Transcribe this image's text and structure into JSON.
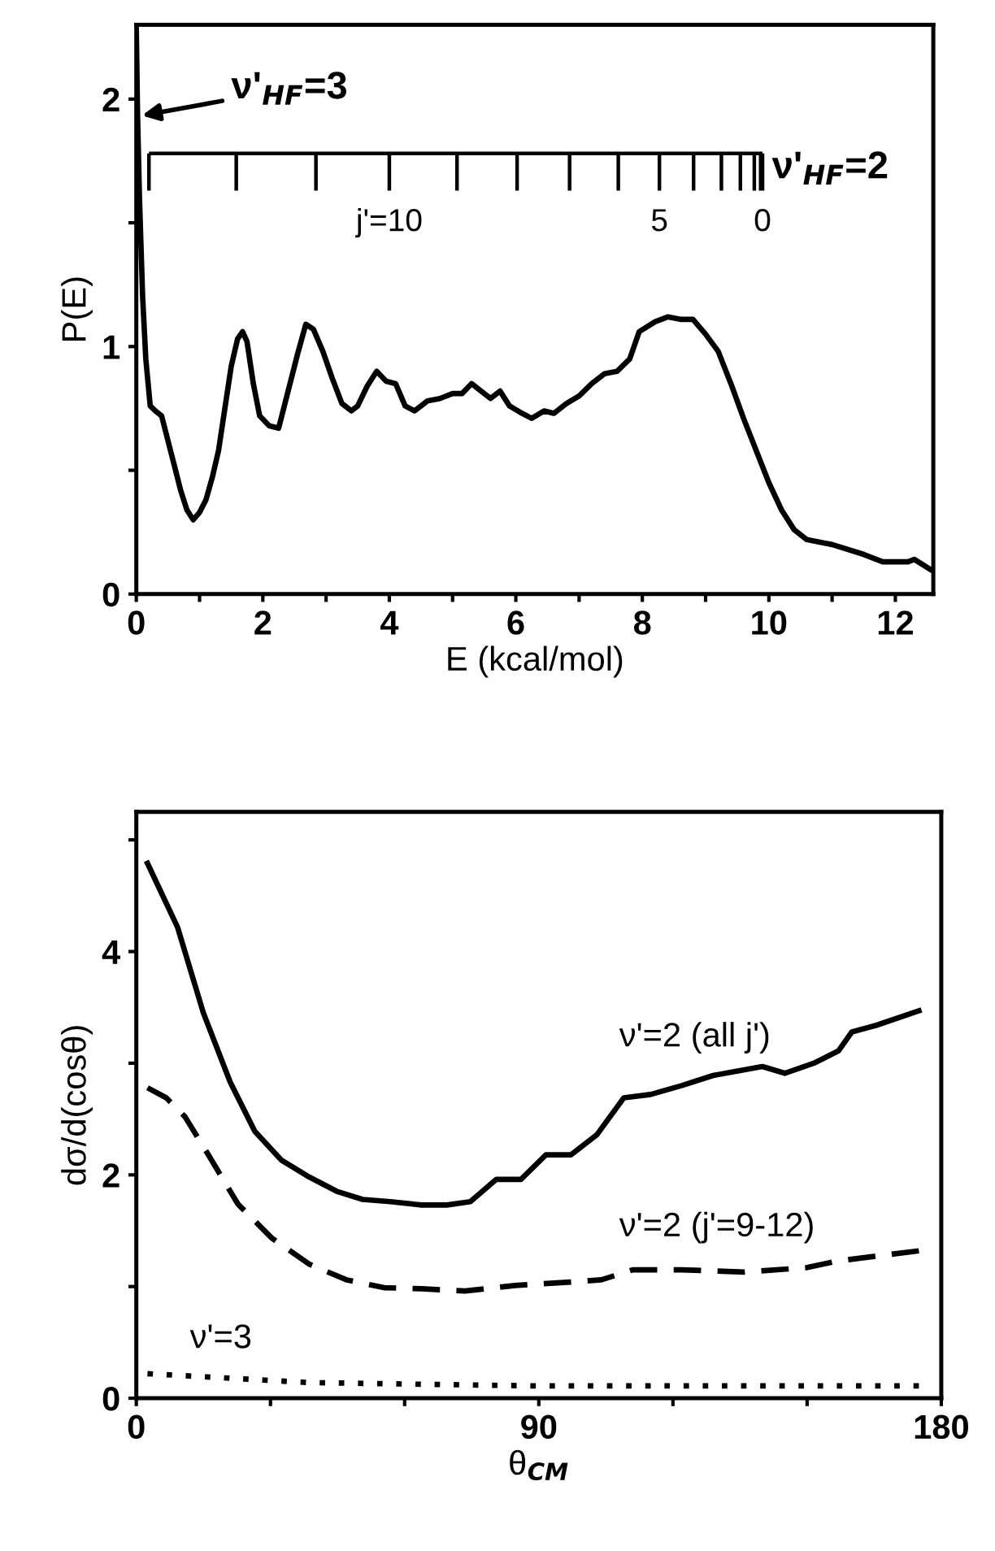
{
  "chart_data": [
    {
      "type": "line",
      "xlabel": "E (kcal/mol)",
      "ylabel": "P(E)",
      "xlim": [
        0,
        12.6
      ],
      "ylim": [
        0,
        2.3
      ],
      "xticks": [
        0,
        {
          "value": 1,
          "label": null
        },
        2,
        {
          "value": 3,
          "label": null
        },
        4,
        {
          "value": 5,
          "label": null
        },
        6,
        {
          "value": 7,
          "label": null
        },
        8,
        {
          "value": 9,
          "label": null
        },
        10,
        {
          "value": 11,
          "label": null
        },
        12
      ],
      "yticks": [
        0,
        {
          "value": 0.5,
          "label": null
        },
        1,
        {
          "value": 1.5,
          "label": null
        },
        2
      ],
      "grid": false,
      "legend": false,
      "line_style": "solid",
      "marker": "none",
      "annotations": [
        {
          "text": "ν'$_{HF}$=3",
          "x": 0.02,
          "y": 1.93
        },
        "ν'$_{HF}$=2",
        "j'=10",
        "5",
        "0"
      ],
      "series": [
        {
          "color": "#000000",
          "x": [
            0.0,
            0.02,
            0.05,
            0.1,
            0.15,
            0.22,
            0.3,
            0.4,
            0.5,
            0.6,
            0.7,
            0.8,
            0.9,
            1.0,
            1.1,
            1.2,
            1.3,
            1.4,
            1.5,
            1.6,
            1.68,
            1.75,
            1.85,
            1.95,
            2.1,
            2.25,
            2.4,
            2.55,
            2.68,
            2.8,
            2.95,
            3.1,
            3.25,
            3.4,
            3.5,
            3.65,
            3.8,
            3.95,
            4.1,
            4.25,
            4.4,
            4.6,
            4.8,
            5.0,
            5.15,
            5.3,
            5.5,
            5.6,
            5.75,
            5.9,
            6.1,
            6.25,
            6.45,
            6.6,
            6.8,
            7.0,
            7.2,
            7.4,
            7.6,
            7.8,
            7.95,
            8.2,
            8.4,
            8.6,
            8.8,
            9.0,
            9.2,
            9.4,
            9.6,
            9.8,
            10.0,
            10.2,
            10.4,
            10.6,
            11.0,
            11.5,
            11.8,
            12.2,
            12.3,
            12.55
          ],
          "values": [
            2.28,
            1.93,
            1.6,
            1.2,
            0.95,
            0.76,
            0.74,
            0.72,
            0.62,
            0.52,
            0.42,
            0.34,
            0.3,
            0.33,
            0.38,
            0.47,
            0.58,
            0.75,
            0.92,
            1.03,
            1.06,
            1.02,
            0.85,
            0.72,
            0.68,
            0.67,
            0.82,
            0.97,
            1.09,
            1.07,
            0.98,
            0.87,
            0.77,
            0.74,
            0.76,
            0.84,
            0.9,
            0.86,
            0.85,
            0.76,
            0.74,
            0.78,
            0.79,
            0.81,
            0.81,
            0.85,
            0.81,
            0.79,
            0.82,
            0.76,
            0.73,
            0.71,
            0.74,
            0.73,
            0.77,
            0.8,
            0.85,
            0.89,
            0.9,
            0.95,
            1.06,
            1.1,
            1.12,
            1.11,
            1.11,
            1.05,
            0.98,
            0.85,
            0.71,
            0.58,
            0.45,
            0.34,
            0.26,
            0.22,
            0.2,
            0.16,
            0.13,
            0.13,
            0.14,
            0.1
          ]
        }
      ]
    },
    {
      "type": "line",
      "xlabel": "θ$_{CM}$",
      "ylabel": "dσ/d(cosθ)",
      "xlim": [
        0,
        180
      ],
      "ylim": [
        0,
        5.25
      ],
      "xticks": [
        0,
        {
          "value": 30,
          "label": null
        },
        {
          "value": 60,
          "label": null
        },
        90,
        {
          "value": 120,
          "label": null
        },
        {
          "value": 150,
          "label": null
        },
        180
      ],
      "yticks": [
        0,
        {
          "value": 1,
          "label": null
        },
        2,
        {
          "value": 3,
          "label": null
        },
        4,
        {
          "value": 5,
          "label": null
        }
      ],
      "grid": false,
      "legend": false,
      "marker": "none",
      "series": [
        {
          "name": "ν'=2 (all j')",
          "color": "#000000",
          "line_style": "solid",
          "x": [
            2.5,
            9.2,
            15,
            21,
            26.5,
            32.5,
            38.7,
            45,
            50.6,
            56.8,
            63.8,
            69.4,
            74.7,
            80.5,
            86,
            91.6,
            97.2,
            103,
            109,
            115,
            122,
            129,
            140,
            145,
            151.5,
            157,
            160,
            165.5,
            175
          ],
          "values": [
            4.79,
            4.22,
            3.45,
            2.83,
            2.39,
            2.13,
            1.98,
            1.85,
            1.78,
            1.76,
            1.73,
            1.73,
            1.76,
            1.96,
            1.96,
            2.18,
            2.18,
            2.36,
            2.69,
            2.72,
            2.8,
            2.89,
            2.97,
            2.91,
            3.0,
            3.11,
            3.28,
            3.34,
            3.47
          ]
        },
        {
          "name": "ν'=2 (j'=9-12)",
          "color": "#000000",
          "line_style": "dashed",
          "x": [
            2.5,
            6.7,
            10.9,
            16.4,
            22.7,
            30.4,
            38.7,
            47,
            55.4,
            63.8,
            73.5,
            84.7,
            97.2,
            104,
            111,
            122,
            136,
            150,
            157,
            175
          ],
          "values": [
            2.78,
            2.69,
            2.52,
            2.16,
            1.74,
            1.43,
            1.2,
            1.06,
            0.99,
            0.98,
            0.96,
            1.01,
            1.04,
            1.06,
            1.15,
            1.15,
            1.13,
            1.17,
            1.23,
            1.32
          ]
        },
        {
          "name": "ν'=3",
          "color": "#000000",
          "line_style": "dotted",
          "x": [
            2.5,
            38.7,
            90,
            175
          ],
          "values": [
            0.22,
            0.14,
            0.11,
            0.11
          ]
        }
      ]
    }
  ]
}
